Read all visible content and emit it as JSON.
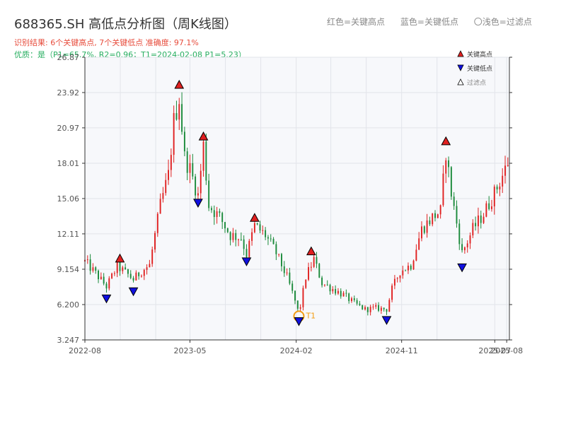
{
  "title": "688365.SH 高低点分析图（周K线图）",
  "subtitle": "识别结果: 6个关键高点, 7个关键低点  准确度: 97.1%",
  "quality": "优质：是（P1=65.7%, R2=0.96；T1=2024-02-08 P1=5.23）",
  "legend_top": {
    "high": "红色=关键高点",
    "low": "蓝色=关键低点",
    "filtered": "〇浅色=过滤点"
  },
  "legend_plot": {
    "high": "关键高点",
    "low": "关键低点",
    "filtered": "过滤点"
  },
  "colors": {
    "up": "#e02020",
    "down": "#1a8a3a",
    "high_marker": "#e02020",
    "low_marker": "#1010e0",
    "t1": "#f39c12",
    "plot_bg": "#f7f8fb",
    "grid": "#e2e4ea"
  },
  "chart_data": {
    "type": "candlestick",
    "period": "weekly",
    "grid": true,
    "y_ticks": [
      "3.247",
      "6.200",
      "9.154",
      "12.11",
      "15.06",
      "18.01",
      "20.97",
      "23.92",
      "26.87"
    ],
    "ylim": [
      3.247,
      26.87
    ],
    "x_ticks": [
      {
        "label": "2022-08",
        "date": "2022-08-01"
      },
      {
        "label": "2023-05",
        "date": "2023-05-01"
      },
      {
        "label": "2024-02",
        "date": "2024-02-01"
      },
      {
        "label": "2024-11",
        "date": "2024-11-01"
      },
      {
        "label": "2025-07",
        "date": "2025-07-01"
      },
      {
        "label": "2025-08",
        "date": "2025-08-01"
      }
    ],
    "xlim": [
      "2022-08-01",
      "2025-08-08"
    ],
    "price_path": [
      [
        "2022-08-01",
        9.8
      ],
      [
        "2022-08-29",
        8.8
      ],
      [
        "2022-09-26",
        7.7
      ],
      [
        "2022-10-24",
        9.4
      ],
      [
        "2022-11-21",
        8.7
      ],
      [
        "2022-12-05",
        8.3
      ],
      [
        "2022-12-26",
        9.0
      ],
      [
        "2023-01-16",
        9.5
      ],
      [
        "2023-02-13",
        14.5
      ],
      [
        "2023-03-06",
        17.0
      ],
      [
        "2023-03-20",
        21.5
      ],
      [
        "2023-04-03",
        23.5
      ],
      [
        "2023-04-17",
        18.5
      ],
      [
        "2023-05-01",
        17.5
      ],
      [
        "2023-05-22",
        15.3
      ],
      [
        "2023-06-05",
        19.5
      ],
      [
        "2023-06-19",
        14.5
      ],
      [
        "2023-07-17",
        13.5
      ],
      [
        "2023-08-14",
        12.0
      ],
      [
        "2023-09-11",
        11.8
      ],
      [
        "2023-09-25",
        10.4
      ],
      [
        "2023-10-16",
        12.8
      ],
      [
        "2023-11-13",
        12.0
      ],
      [
        "2023-12-11",
        10.5
      ],
      [
        "2024-01-08",
        8.5
      ],
      [
        "2024-01-29",
        6.5
      ],
      [
        "2024-02-08",
        5.4
      ],
      [
        "2024-02-26",
        8.5
      ],
      [
        "2024-03-18",
        10.0
      ],
      [
        "2024-04-08",
        8.0
      ],
      [
        "2024-05-06",
        7.5
      ],
      [
        "2024-06-03",
        7.0
      ],
      [
        "2024-07-01",
        6.3
      ],
      [
        "2024-07-29",
        5.8
      ],
      [
        "2024-08-26",
        5.9
      ],
      [
        "2024-09-23",
        5.8
      ],
      [
        "2024-10-07",
        7.5
      ],
      [
        "2024-10-28",
        9.0
      ],
      [
        "2024-11-25",
        9.5
      ],
      [
        "2024-12-23",
        12.5
      ],
      [
        "2025-01-20",
        13.5
      ],
      [
        "2025-02-10",
        14.0
      ],
      [
        "2025-02-24",
        19.0
      ],
      [
        "2025-03-10",
        15.5
      ],
      [
        "2025-04-07",
        10.5
      ],
      [
        "2025-05-05",
        12.5
      ],
      [
        "2025-06-02",
        13.8
      ],
      [
        "2025-06-30",
        15.5
      ],
      [
        "2025-07-28",
        17.5
      ],
      [
        "2025-08-08",
        18.5
      ]
    ],
    "key_highs": [
      {
        "date": "2022-10-31",
        "price": 9.4
      },
      {
        "date": "2023-04-03",
        "price": 23.92
      },
      {
        "date": "2023-06-05",
        "price": 19.6
      },
      {
        "date": "2023-10-16",
        "price": 12.8
      },
      {
        "date": "2024-03-11",
        "price": 10.0
      },
      {
        "date": "2025-02-24",
        "price": 19.2
      }
    ],
    "key_lows": [
      {
        "date": "2022-09-26",
        "price": 7.3
      },
      {
        "date": "2022-12-05",
        "price": 7.9
      },
      {
        "date": "2023-05-22",
        "price": 15.3
      },
      {
        "date": "2023-09-25",
        "price": 10.4
      },
      {
        "date": "2024-02-08",
        "price": 5.4
      },
      {
        "date": "2024-09-23",
        "price": 5.5
      },
      {
        "date": "2025-04-07",
        "price": 9.9
      }
    ],
    "t1": {
      "label": "T1",
      "date": "2024-02-08",
      "price": 5.23
    }
  }
}
